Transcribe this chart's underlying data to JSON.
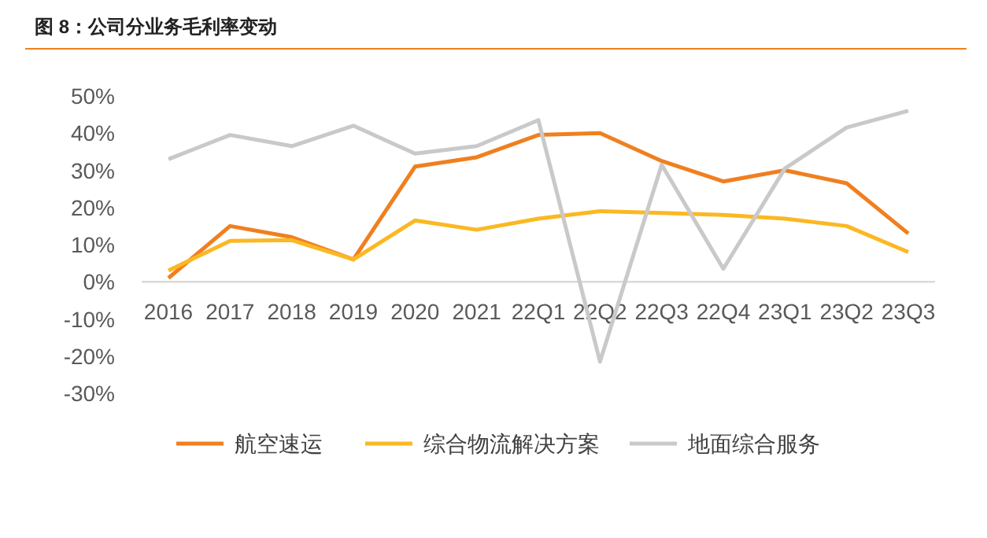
{
  "chart_data": {
    "type": "line",
    "title": "图 8：公司分业务毛利率变动",
    "categories": [
      "2016",
      "2017",
      "2018",
      "2019",
      "2020",
      "2021",
      "22Q1",
      "22Q2",
      "22Q3",
      "22Q4",
      "23Q1",
      "23Q2",
      "23Q3"
    ],
    "series": [
      {
        "name": "航空速运",
        "color": "#f07f1f",
        "values": [
          1,
          15,
          12,
          6,
          31,
          33.5,
          39.5,
          40,
          32.5,
          27,
          30,
          26.5,
          13
        ]
      },
      {
        "name": "综合物流解决方案",
        "color": "#fbb824",
        "values": [
          3,
          11,
          11.2,
          6,
          16.5,
          14,
          17,
          19,
          18.5,
          18,
          17,
          15,
          8
        ]
      },
      {
        "name": "地面综合服务",
        "color": "#c9c9c9",
        "values": [
          33,
          39.5,
          36.5,
          42,
          34.5,
          36.5,
          43.5,
          -21.5,
          31.5,
          3.5,
          30.5,
          41.5,
          46
        ]
      }
    ],
    "ylim": [
      -30,
      50
    ],
    "yticks": [
      {
        "value": -30,
        "label": "-30%"
      },
      {
        "value": -20,
        "label": "-20%"
      },
      {
        "value": -10,
        "label": "-10%"
      },
      {
        "value": 0,
        "label": "0%"
      },
      {
        "value": 10,
        "label": "10%"
      },
      {
        "value": 20,
        "label": "20%"
      },
      {
        "value": 30,
        "label": "30%"
      },
      {
        "value": 40,
        "label": "40%"
      },
      {
        "value": 50,
        "label": "50%"
      }
    ],
    "legend": "bottom",
    "grid": false,
    "marker": "none",
    "line_style": "solid"
  }
}
